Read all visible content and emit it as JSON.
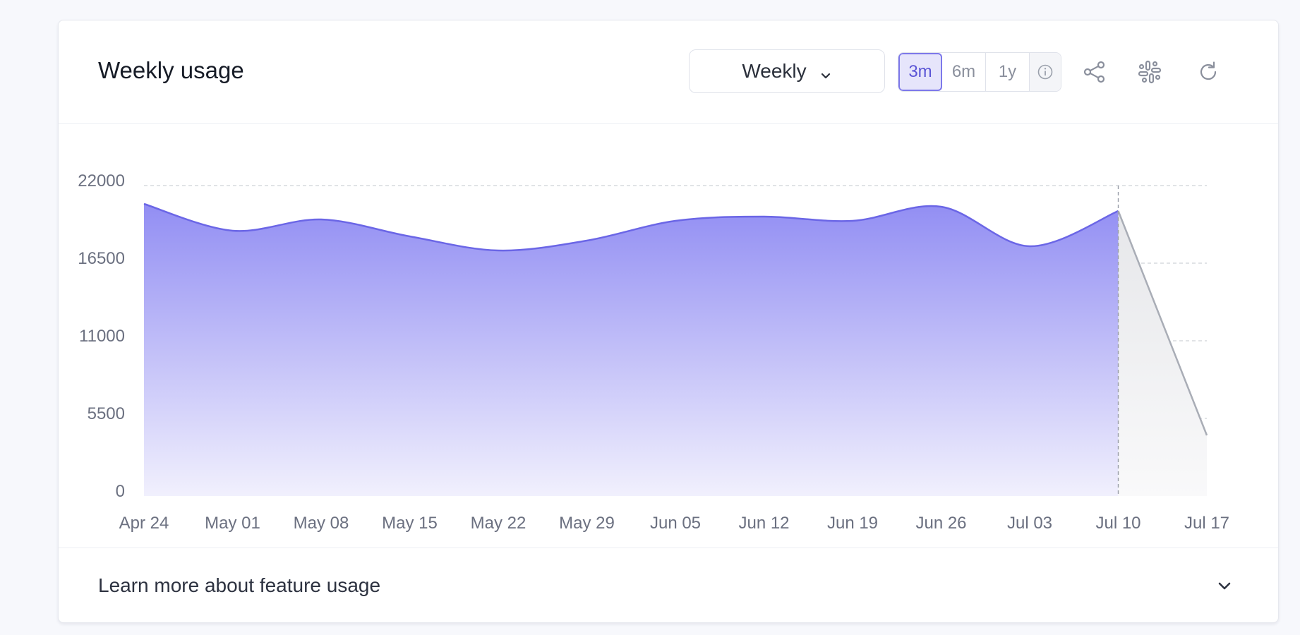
{
  "card": {
    "title": "Weekly usage",
    "period_select": {
      "value": "Weekly"
    },
    "range_options": [
      {
        "label": "3m",
        "active": true
      },
      {
        "label": "6m",
        "active": false
      },
      {
        "label": "1y",
        "active": false
      }
    ],
    "footer": {
      "label": "Learn more about feature usage"
    }
  },
  "icons": [
    "info-icon",
    "share-icon",
    "slack-icon",
    "refresh-icon",
    "chevron-down-icon"
  ],
  "colors": {
    "accent": "#6b66e6",
    "projection": "#a9adb6"
  },
  "chart_data": {
    "type": "area",
    "title": "Weekly usage",
    "x": [
      "Apr 24",
      "May 01",
      "May 08",
      "May 15",
      "May 22",
      "May 29",
      "Jun 05",
      "Jun 12",
      "Jun 19",
      "Jun 26",
      "Jul 03",
      "Jul 10",
      "Jul 17"
    ],
    "series": [
      {
        "values": [
          20700,
          18800,
          19600,
          18400,
          17400,
          18100,
          19500,
          19800,
          19500,
          20500,
          17700,
          20200,
          null
        ]
      },
      {
        "values": [
          null,
          null,
          null,
          null,
          null,
          null,
          null,
          null,
          null,
          null,
          null,
          20200,
          4300
        ]
      }
    ],
    "yticks": [
      0,
      5500,
      11000,
      16500,
      22000
    ],
    "ylim": [
      0,
      22000
    ],
    "grid": true,
    "xlabel": "",
    "ylabel": ""
  }
}
